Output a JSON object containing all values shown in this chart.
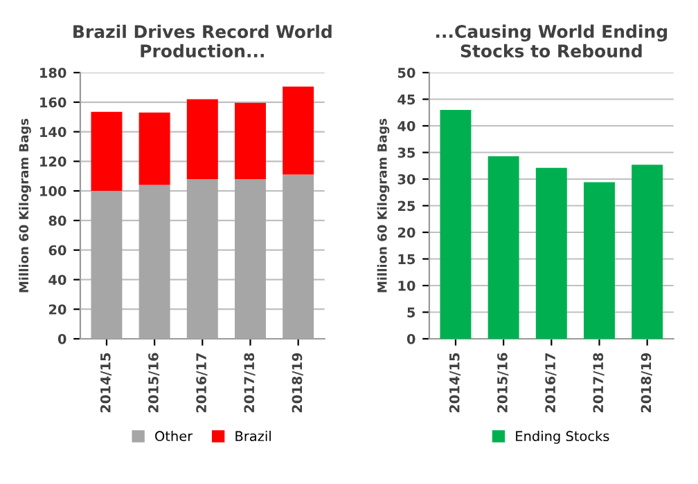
{
  "chart_data": [
    {
      "type": "bar",
      "title": "Brazil Drives Record World\nProduction...",
      "ylabel": "Million 60 Kilogram Bags",
      "categories": [
        "2014/15",
        "2015/16",
        "2016/17",
        "2017/18",
        "2018/19"
      ],
      "stacked": true,
      "series": [
        {
          "name": "Other",
          "color": "#a6a6a6",
          "values": [
            100,
            104,
            108,
            108,
            111
          ]
        },
        {
          "name": "Brazil",
          "color": "#ff0000",
          "values": [
            53.5,
            49,
            54,
            51.5,
            59.5
          ]
        }
      ],
      "ylim": [
        0,
        180
      ],
      "yticks": [
        0,
        20,
        40,
        60,
        80,
        100,
        120,
        140,
        160,
        180
      ],
      "grid": "y",
      "legend": "bottom"
    },
    {
      "type": "bar",
      "title": "...Causing World Ending\nStocks to Rebound",
      "ylabel": "Million 60 Kilogram Bags",
      "categories": [
        "2014/15",
        "2015/16",
        "2016/17",
        "2017/18",
        "2018/19"
      ],
      "series": [
        {
          "name": "Ending Stocks",
          "color": "#00b050",
          "values": [
            43,
            34.3,
            32.1,
            29.4,
            32.7
          ]
        }
      ],
      "ylim": [
        0,
        50
      ],
      "yticks": [
        0,
        5,
        10,
        15,
        20,
        25,
        30,
        35,
        40,
        45,
        50
      ],
      "grid": "y",
      "legend": "bottom"
    }
  ]
}
